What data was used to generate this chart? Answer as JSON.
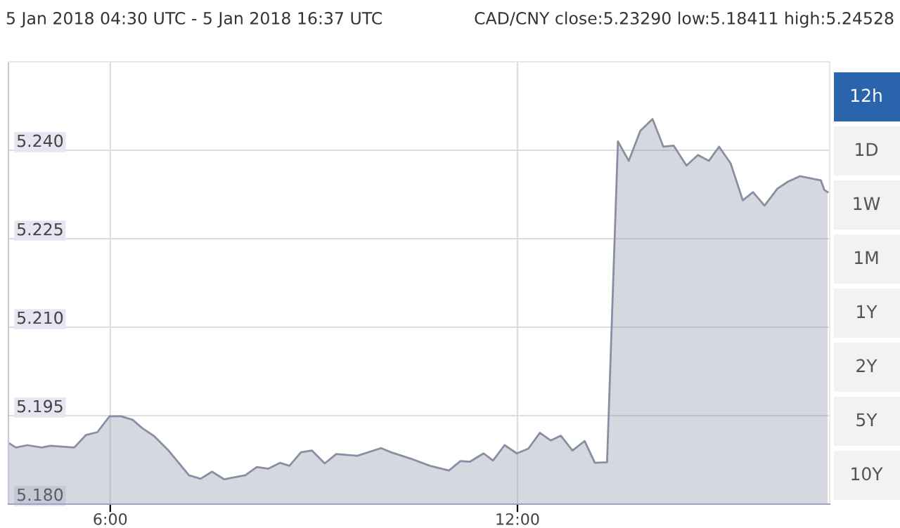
{
  "chart_data": {
    "type": "area",
    "title": "5 Jan 2018 04:30 UTC - 5 Jan 2018 16:37 UTC",
    "subtitle": "CAD/CNY close:5.23290 low:5.18411 high:5.24528",
    "annotations": [
      "12h",
      "1D",
      "1W",
      "1M",
      "1Y",
      "2Y",
      "5Y",
      "10Y"
    ],
    "series": [
      {
        "color": "#8a8ea3",
        "x": [
          4.5,
          4.61,
          4.78,
          4.99,
          5.12,
          5.47,
          5.64,
          5.81,
          5.99,
          6.16,
          6.33,
          6.47,
          6.64,
          6.85,
          7.16,
          7.33,
          7.5,
          7.68,
          7.81,
          7.99,
          8.16,
          8.33,
          8.5,
          8.64,
          8.81,
          8.97,
          9.16,
          9.33,
          9.64,
          9.99,
          10.16,
          10.43,
          10.71,
          10.99,
          11.16,
          11.3,
          11.5,
          11.64,
          11.81,
          11.99,
          12.16,
          12.33,
          12.49,
          12.64,
          12.81,
          12.99,
          13.14,
          13.32,
          13.48,
          13.64,
          13.81,
          13.99,
          14.15,
          14.3,
          14.49,
          14.66,
          14.82,
          14.97,
          15.14,
          15.32,
          15.47,
          15.64,
          15.83,
          15.99,
          16.16,
          16.47,
          16.52,
          16.57
        ],
        "values": [
          5.1904,
          5.1896,
          5.19,
          5.1896,
          5.1899,
          5.1896,
          5.1917,
          5.1922,
          5.1949,
          5.1949,
          5.1943,
          5.1929,
          5.1916,
          5.1892,
          5.1849,
          5.1843,
          5.1855,
          5.1842,
          5.1845,
          5.1849,
          5.1863,
          5.186,
          5.187,
          5.1865,
          5.1888,
          5.1891,
          5.1869,
          5.1885,
          5.1882,
          5.1895,
          5.1887,
          5.1877,
          5.1865,
          5.1857,
          5.1873,
          5.1872,
          5.1886,
          5.1874,
          5.19,
          5.1886,
          5.1894,
          5.1921,
          5.1908,
          5.1916,
          5.1891,
          5.1907,
          5.187,
          5.1871,
          5.2415,
          5.2382,
          5.2433,
          5.2453,
          5.2406,
          5.2408,
          5.2374,
          5.2392,
          5.2382,
          5.2406,
          5.2378,
          5.2315,
          5.2329,
          5.2306,
          5.2335,
          5.2347,
          5.2356,
          5.2349,
          5.2333,
          5.2329
        ]
      }
    ],
    "xlim": [
      4.5,
      16.6
    ],
    "ylim": [
      5.18,
      5.255
    ],
    "xticks": [
      {
        "value": 6,
        "label": "6:00"
      },
      {
        "value": 12,
        "label": "12:00"
      }
    ],
    "yticks": [
      {
        "value": 5.18,
        "label": "5.180"
      },
      5.195,
      {
        "value": 5.21,
        "label": "5.210"
      },
      5.225,
      {
        "value": 5.24,
        "label": "5.240"
      }
    ],
    "grid": true,
    "legend": false
  }
}
